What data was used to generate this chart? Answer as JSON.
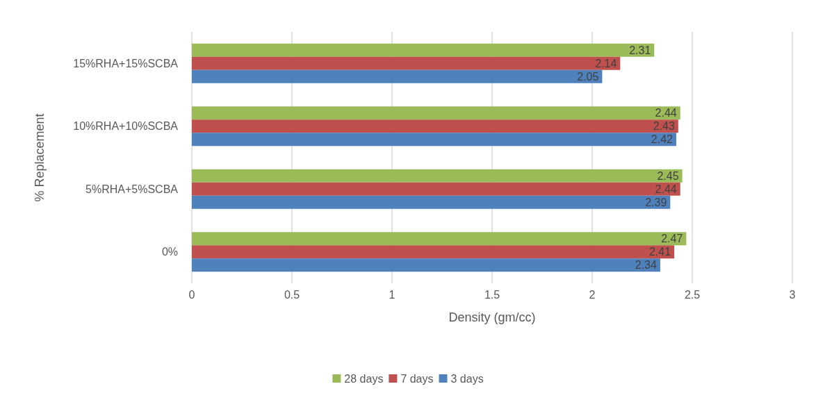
{
  "chart_data": {
    "type": "bar",
    "orientation": "horizontal",
    "xlabel": "Density (gm/cc)",
    "ylabel": "% Replacement",
    "categories": [
      "15%RHA+15%SCBA",
      "10%RHA+10%SCBA",
      "5%RHA+5%SCBA",
      "0%"
    ],
    "series": [
      {
        "name": "28 days",
        "color": "#9bbb59",
        "values": [
          2.31,
          2.44,
          2.45,
          2.47
        ]
      },
      {
        "name": "7 days",
        "color": "#c0504d",
        "values": [
          2.14,
          2.43,
          2.44,
          2.41
        ]
      },
      {
        "name": "3 days",
        "color": "#4f81bd",
        "values": [
          2.05,
          2.42,
          2.39,
          2.34
        ]
      }
    ],
    "xlim": [
      0,
      3
    ],
    "xticks": [
      0,
      0.5,
      1,
      1.5,
      2,
      2.5,
      3
    ],
    "grid": "x",
    "legend": "bottom",
    "data_labels": true
  }
}
